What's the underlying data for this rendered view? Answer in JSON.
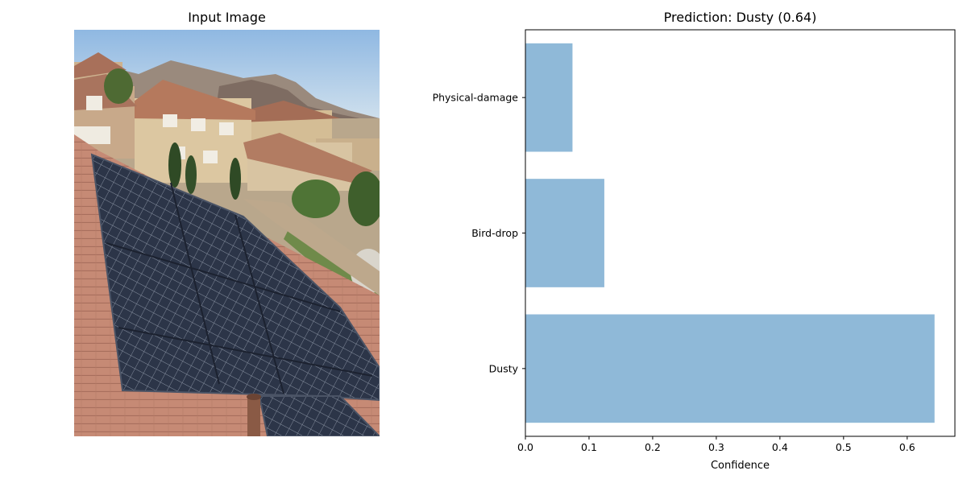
{
  "left_panel": {
    "title": "Input Image"
  },
  "right_panel": {
    "title": "Prediction: Dusty (0.64)"
  },
  "chart_data": {
    "type": "bar",
    "orientation": "horizontal",
    "title": "Prediction: Dusty (0.64)",
    "categories": [
      "Dusty",
      "Bird-drop",
      "Physical-damage"
    ],
    "values": [
      0.643,
      0.124,
      0.074
    ],
    "xlabel": "Confidence",
    "ylabel": "",
    "xlim": [
      0,
      0.675
    ],
    "xticks": [
      "0.0",
      "0.1",
      "0.2",
      "0.3",
      "0.4",
      "0.5",
      "0.6"
    ],
    "bar_color": "#8fb9d8",
    "grid": false,
    "legend": "none"
  },
  "colors": {
    "sky": "#a9cbe6",
    "roof_tile": "#c98a74",
    "panel": "#2b3446",
    "house_wall": "#d9c29c",
    "house_roof": "#b07a5e",
    "hills": "#8f7e72",
    "greenery": "#4b6b34"
  }
}
